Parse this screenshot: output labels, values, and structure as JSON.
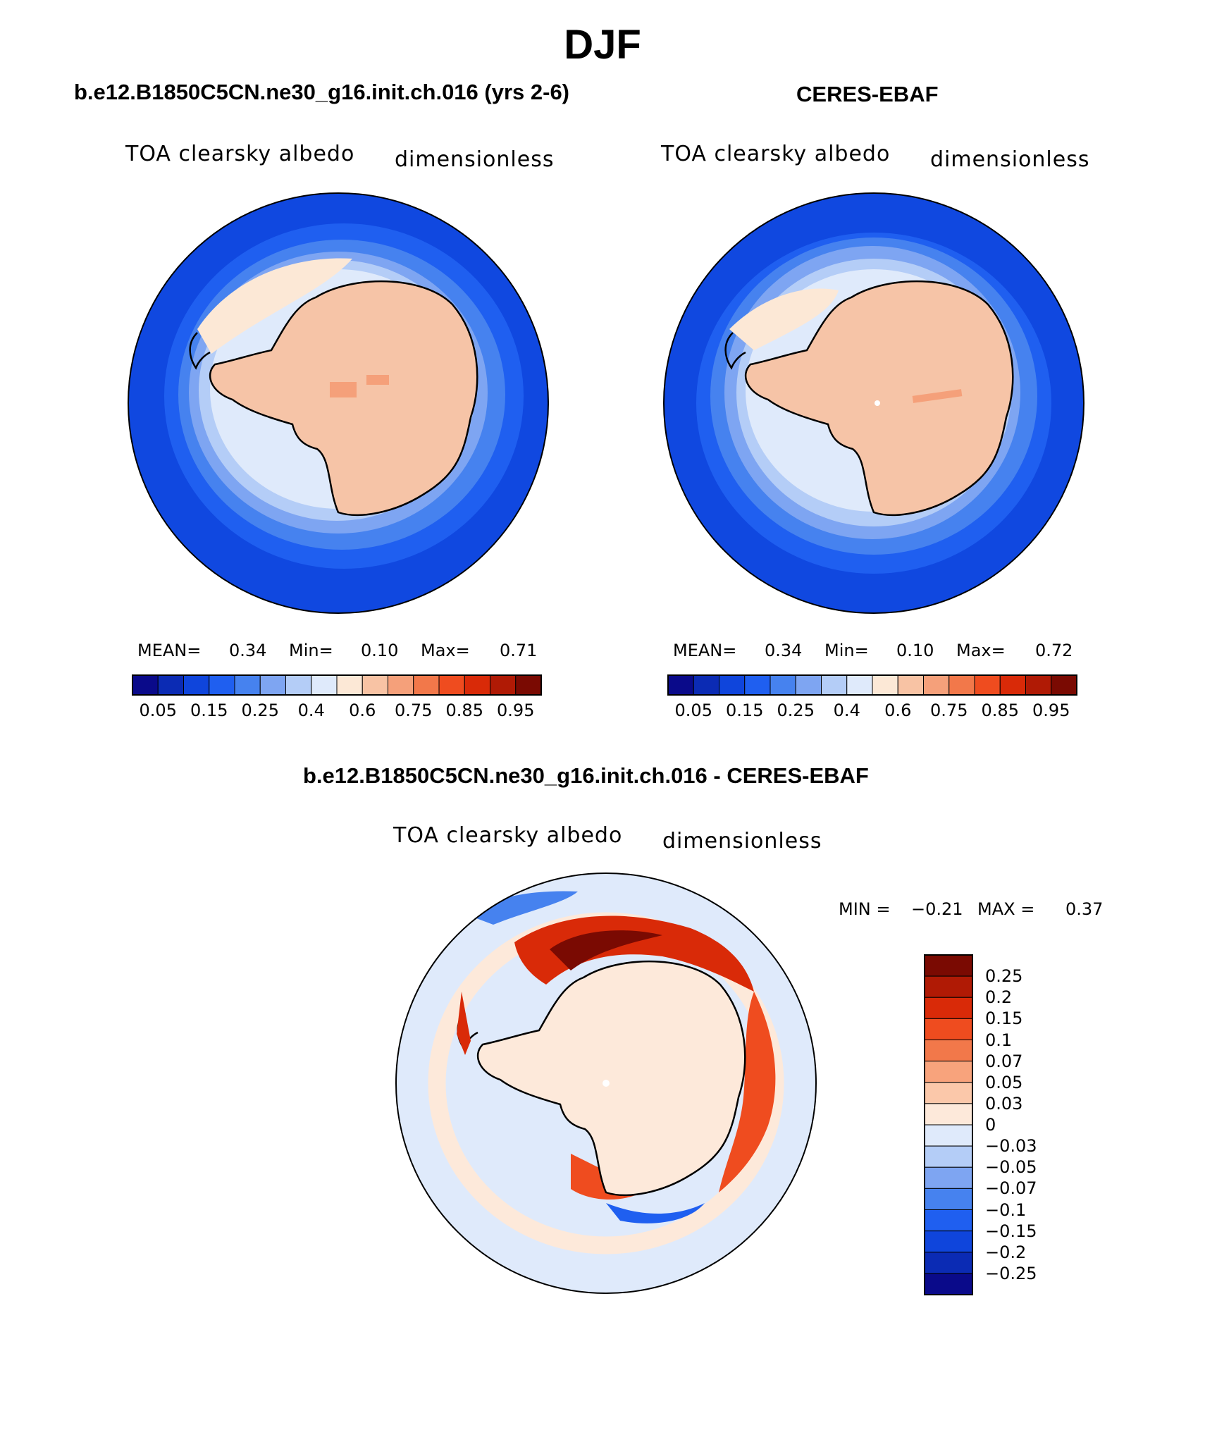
{
  "chart_data": [
    {
      "type": "heatmap",
      "panel": "model",
      "title": "b.e12.B1850C5CN.ne30_g16.init.ch.016 (yrs 2-6)",
      "variable": "TOA clearsky albedo",
      "units": "dimensionless",
      "projection": "south polar stereographic",
      "stats": {
        "mean_label": "MEAN=",
        "mean": "0.34",
        "min_label": "Min=",
        "min": "0.10",
        "max_label": "Max=",
        "max": "0.71"
      },
      "colorbar_ticks": [
        "0.05",
        "0.15",
        "0.25",
        "0.4",
        "0.6",
        "0.75",
        "0.85",
        "0.95"
      ]
    },
    {
      "type": "heatmap",
      "panel": "obs",
      "title": "CERES-EBAF",
      "variable": "TOA clearsky albedo",
      "units": "dimensionless",
      "projection": "south polar stereographic",
      "stats": {
        "mean_label": "MEAN=",
        "mean": "0.34",
        "min_label": "Min=",
        "min": "0.10",
        "max_label": "Max=",
        "max": "0.72"
      },
      "colorbar_ticks": [
        "0.05",
        "0.15",
        "0.25",
        "0.4",
        "0.6",
        "0.75",
        "0.85",
        "0.95"
      ]
    },
    {
      "type": "heatmap",
      "panel": "difference",
      "title": "b.e12.B1850C5CN.ne30_g16.init.ch.016 - CERES-EBAF",
      "variable": "TOA clearsky albedo",
      "units": "dimensionless",
      "projection": "south polar stereographic",
      "stats": {
        "min_label": "MIN =",
        "min": "−0.21",
        "max_label": "MAX =",
        "max": "0.37"
      },
      "colorbar_ticks": [
        "0.25",
        "0.2",
        "0.15",
        "0.1",
        "0.07",
        "0.05",
        "0.03",
        "0",
        "−0.03",
        "−0.05",
        "−0.07",
        "−0.1",
        "−0.15",
        "−0.2",
        "−0.25"
      ]
    }
  ],
  "figure_title": "DJF",
  "colors": {
    "albedo_scale": [
      "#0a0a8a",
      "#0b2bb4",
      "#0f45dc",
      "#1f5ff0",
      "#4682ef",
      "#7ea5f2",
      "#b4cdf7",
      "#dfeafb",
      "#fce8d6",
      "#f8c3a4",
      "#f5a07a",
      "#f2784a",
      "#ef4c1f",
      "#d92a08",
      "#b01a05",
      "#7a0a02"
    ],
    "diff_scale": [
      "#7a0a02",
      "#b01a05",
      "#d92a08",
      "#ef4c1f",
      "#f2784a",
      "#f8a37c",
      "#fbc8aa",
      "#fde9da",
      "#dfeafb",
      "#b4cdf7",
      "#7ea5f2",
      "#4682ef",
      "#1f5ff0",
      "#0f45dc",
      "#0b2bb4",
      "#0a0a8a"
    ],
    "ocean": "#1f4fe0",
    "land": "#f6c4a7",
    "diff_background": "#dfeafb"
  }
}
